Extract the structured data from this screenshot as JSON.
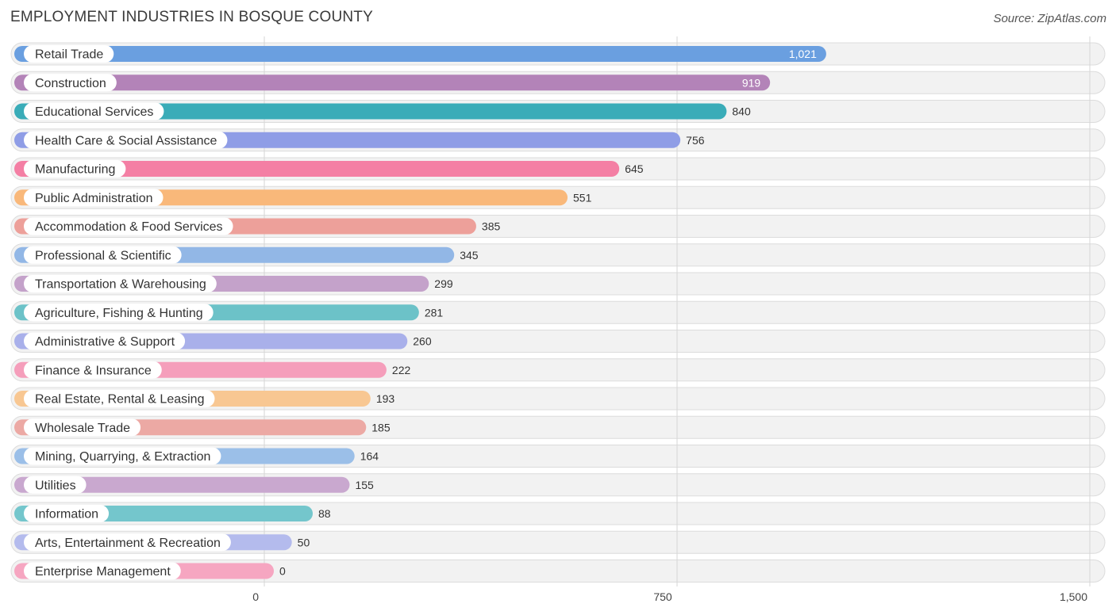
{
  "header": {
    "title": "EMPLOYMENT INDUSTRIES IN BOSQUE COUNTY",
    "source": "Source: ZipAtlas.com"
  },
  "chart_data": {
    "type": "bar",
    "orientation": "horizontal",
    "title": "EMPLOYMENT INDUSTRIES IN BOSQUE COUNTY",
    "xlabel": "",
    "ylabel": "",
    "xlim": [
      0,
      1500
    ],
    "ticks": [
      {
        "value": 0,
        "label": "0"
      },
      {
        "value": 750,
        "label": "750"
      },
      {
        "value": 1500,
        "label": "1,500"
      }
    ],
    "categories": [
      "Retail Trade",
      "Construction",
      "Educational Services",
      "Health Care & Social Assistance",
      "Manufacturing",
      "Public Administration",
      "Accommodation & Food Services",
      "Professional & Scientific",
      "Transportation & Warehousing",
      "Agriculture, Fishing & Hunting",
      "Administrative & Support",
      "Finance & Insurance",
      "Real Estate, Rental & Leasing",
      "Wholesale Trade",
      "Mining, Quarrying, & Extraction",
      "Utilities",
      "Information",
      "Arts, Entertainment & Recreation",
      "Enterprise Management"
    ],
    "values": [
      1021,
      919,
      840,
      756,
      645,
      551,
      385,
      345,
      299,
      281,
      260,
      222,
      193,
      185,
      164,
      155,
      88,
      50,
      0
    ],
    "value_labels": [
      "1,021",
      "919",
      "840",
      "756",
      "645",
      "551",
      "385",
      "345",
      "299",
      "281",
      "260",
      "222",
      "193",
      "185",
      "164",
      "155",
      "88",
      "50",
      "0"
    ],
    "colors": [
      "#6a9fe0",
      "#b383b8",
      "#3aacb8",
      "#8f9de6",
      "#f47fa4",
      "#f9b87a",
      "#eda09a",
      "#92b7e6",
      "#c4a2ca",
      "#6cc2c8",
      "#a9b0ea",
      "#f59ebb",
      "#f8c792",
      "#eca9a4",
      "#9bbfe8",
      "#c9a8cf",
      "#74c6cc",
      "#b4bbed",
      "#f6a6c1"
    ]
  }
}
